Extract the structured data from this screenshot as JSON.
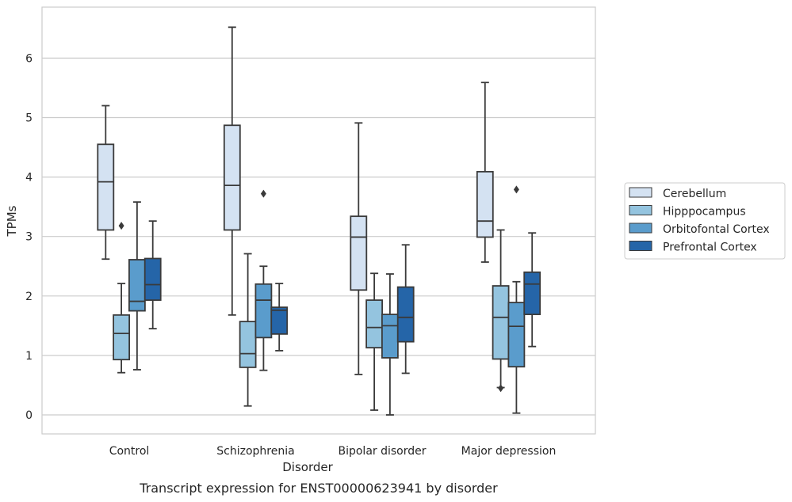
{
  "chart_data": {
    "type": "box",
    "xlabel": "Disorder",
    "ylabel": "TPMs",
    "caption": "Transcript expression for ENST00000623941 by disorder",
    "ylim": [
      -0.32,
      6.87
    ],
    "yticks": [
      "0",
      "1",
      "2",
      "3",
      "4",
      "5",
      "6"
    ],
    "grid": "horizontal",
    "legend_position": "right",
    "categories": [
      "Control",
      "Schizophrenia",
      "Bipolar disorder",
      "Major depression"
    ],
    "series": [
      {
        "name": "Cerebellum",
        "color": "#d4e2f2",
        "boxes": [
          {
            "whisker_low": 2.62,
            "q1": 3.11,
            "median": 3.92,
            "q3": 4.55,
            "whisker_high": 5.2,
            "outliers": []
          },
          {
            "whisker_low": 1.68,
            "q1": 3.11,
            "median": 3.86,
            "q3": 4.87,
            "whisker_high": 6.52,
            "outliers": []
          },
          {
            "whisker_low": 0.68,
            "q1": 2.1,
            "median": 2.99,
            "q3": 3.34,
            "whisker_high": 4.91,
            "outliers": []
          },
          {
            "whisker_low": 2.57,
            "q1": 2.99,
            "median": 3.26,
            "q3": 4.09,
            "whisker_high": 5.59,
            "outliers": []
          }
        ]
      },
      {
        "name": "Hipppocampus",
        "color": "#94c4df",
        "boxes": [
          {
            "whisker_low": 0.71,
            "q1": 0.93,
            "median": 1.37,
            "q3": 1.68,
            "whisker_high": 2.21,
            "outliers": [
              3.18
            ]
          },
          {
            "whisker_low": 0.15,
            "q1": 0.8,
            "median": 1.03,
            "q3": 1.57,
            "whisker_high": 2.71,
            "outliers": []
          },
          {
            "whisker_low": 0.08,
            "q1": 1.13,
            "median": 1.47,
            "q3": 1.93,
            "whisker_high": 2.38,
            "outliers": []
          },
          {
            "whisker_low": 0.46,
            "q1": 0.94,
            "median": 1.64,
            "q3": 2.17,
            "whisker_high": 3.11,
            "outliers": [
              0.45
            ]
          }
        ]
      },
      {
        "name": "Orbitofontal Cortex",
        "color": "#5a9ccc",
        "boxes": [
          {
            "whisker_low": 0.76,
            "q1": 1.75,
            "median": 1.91,
            "q3": 2.61,
            "whisker_high": 3.58,
            "outliers": []
          },
          {
            "whisker_low": 0.75,
            "q1": 1.3,
            "median": 1.93,
            "q3": 2.2,
            "whisker_high": 2.5,
            "outliers": [
              3.72
            ]
          },
          {
            "whisker_low": 0.0,
            "q1": 0.96,
            "median": 1.5,
            "q3": 1.69,
            "whisker_high": 2.37,
            "outliers": []
          },
          {
            "whisker_low": 0.03,
            "q1": 0.81,
            "median": 1.49,
            "q3": 1.89,
            "whisker_high": 2.24,
            "outliers": [
              3.79
            ]
          }
        ]
      },
      {
        "name": "Prefrontal Cortex",
        "color": "#2565a8",
        "boxes": [
          {
            "whisker_low": 1.45,
            "q1": 1.93,
            "median": 2.19,
            "q3": 2.63,
            "whisker_high": 3.26,
            "outliers": []
          },
          {
            "whisker_low": 1.08,
            "q1": 1.36,
            "median": 1.76,
            "q3": 1.81,
            "whisker_high": 2.21,
            "outliers": []
          },
          {
            "whisker_low": 0.7,
            "q1": 1.23,
            "median": 1.64,
            "q3": 2.15,
            "whisker_high": 2.86,
            "outliers": []
          },
          {
            "whisker_low": 1.15,
            "q1": 1.69,
            "median": 2.2,
            "q3": 2.4,
            "whisker_high": 3.06,
            "outliers": []
          }
        ]
      }
    ]
  }
}
